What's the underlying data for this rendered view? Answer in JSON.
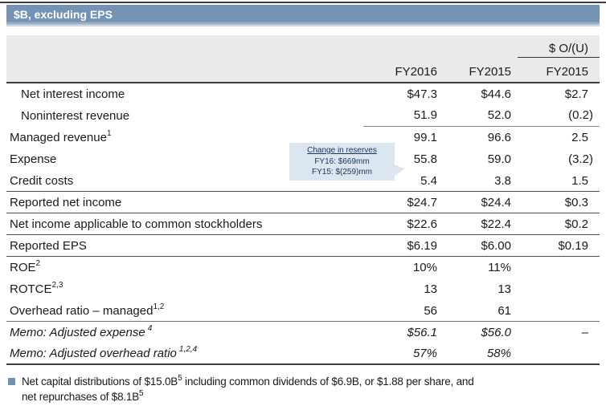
{
  "header": {
    "title": "$B, excluding EPS"
  },
  "table": {
    "group_header": "$ O/(U)",
    "columns": [
      "FY2016",
      "FY2015",
      "FY2015"
    ],
    "rows": [
      {
        "label": "Net interest income",
        "sup": "",
        "values": [
          "$47.3",
          "$44.6",
          "$2.7"
        ]
      },
      {
        "label": "Noninterest revenue",
        "sup": "",
        "values": [
          "51.9",
          "52.0",
          "(0.2)"
        ]
      },
      {
        "label": "Managed revenue",
        "sup": "1",
        "values": [
          "99.1",
          "96.6",
          "2.5"
        ]
      },
      {
        "label": "Expense",
        "sup": "",
        "values": [
          "55.8",
          "59.0",
          "(3.2)"
        ]
      },
      {
        "label": "Credit costs",
        "sup": "",
        "values": [
          "5.4",
          "3.8",
          "1.5"
        ]
      },
      {
        "label": "Reported net income",
        "sup": "",
        "values": [
          "$24.7",
          "$24.4",
          "$0.3"
        ]
      },
      {
        "label": "Net income applicable to common stockholders",
        "sup": "",
        "values": [
          "$22.6",
          "$22.4",
          "$0.2"
        ]
      },
      {
        "label": "Reported EPS",
        "sup": "",
        "values": [
          "$6.19",
          "$6.00",
          "$0.19"
        ]
      },
      {
        "label": "ROE",
        "sup": "2",
        "values": [
          "10%",
          "11%",
          ""
        ]
      },
      {
        "label": "ROTCE",
        "sup": "2,3",
        "values": [
          "13",
          "13",
          ""
        ]
      },
      {
        "label": "Overhead ratio – managed",
        "sup": "1,2",
        "values": [
          "56",
          "61",
          ""
        ]
      },
      {
        "label": "Memo: Adjusted expense",
        "sup": "4",
        "values": [
          "$56.1",
          "$56.0",
          "–"
        ]
      },
      {
        "label": "Memo: Adjusted overhead ratio",
        "sup": "1,2,4",
        "values": [
          "57%",
          "58%",
          ""
        ]
      }
    ]
  },
  "callout": {
    "title": "Change in reserves",
    "line1": "FY16: $669mm",
    "line2": "FY15: $(259)mm"
  },
  "footnote": {
    "line1_a": "Net capital distributions of $15.0B",
    "line1_sup": "5",
    "line1_b": " including common dividends of $6.9B, or $1.88 per share, and",
    "line2_a": "net repurchases of $8.1B",
    "line2_sup": "5"
  },
  "colors": {
    "title_bar": "#7392b4",
    "header_band": "#eaeaea",
    "callout_bg": "#dce6f1",
    "callout_text": "#17365d",
    "bullet": "#7390b0",
    "rule_dark": "#3d3d3d"
  }
}
